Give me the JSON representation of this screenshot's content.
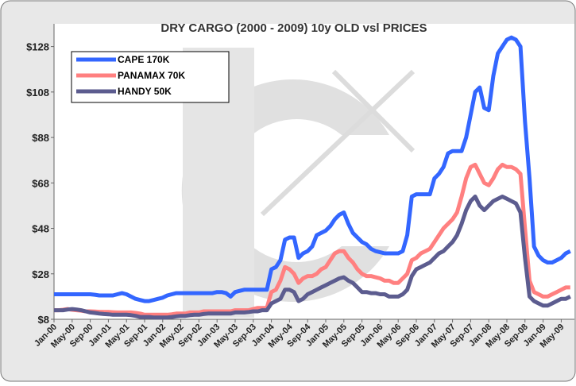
{
  "chart_data": {
    "type": "line",
    "title": "DRY CARGO (2000 - 2009) 10y OLD vsl PRICES",
    "categories": [
      "Jan-00",
      null,
      null,
      null,
      "May-00",
      null,
      null,
      null,
      "Sep-00",
      null,
      null,
      null,
      "Jan-01",
      null,
      null,
      null,
      "May-01",
      null,
      null,
      null,
      "Sep-01",
      null,
      null,
      null,
      "Jan-02",
      null,
      null,
      null,
      "May-02",
      null,
      null,
      null,
      "Sep-02",
      null,
      null,
      null,
      "Jan-03",
      null,
      null,
      null,
      "May-03",
      null,
      null,
      null,
      "Sep-03",
      null,
      null,
      null,
      "Jan-04",
      null,
      null,
      null,
      "May-04",
      null,
      null,
      null,
      "Sep-04",
      null,
      null,
      null,
      "Jan-05",
      null,
      null,
      null,
      "May-05",
      null,
      null,
      null,
      "Sep-05",
      null,
      null,
      null,
      "Jan-06",
      null,
      null,
      null,
      "May-06",
      null,
      null,
      null,
      "Sep-06",
      null,
      null,
      null,
      "Jan-07",
      null,
      null,
      null,
      "May-07",
      null,
      null,
      null,
      "Sep-07",
      null,
      null,
      null,
      "Jan-08",
      null,
      null,
      null,
      "May-08",
      null,
      null,
      null,
      "Sep-08",
      null,
      null,
      null,
      "Jan-09",
      null,
      null,
      null,
      "May-09",
      null,
      null
    ],
    "series": [
      {
        "name": "CAPE 170K",
        "color": "#3366ff",
        "values": [
          19,
          19,
          19,
          19,
          19,
          19,
          19,
          19,
          19,
          18.8,
          18.5,
          18.5,
          18.5,
          18.5,
          19,
          19.5,
          19,
          18,
          17,
          16.5,
          16,
          16,
          16.5,
          17,
          17.5,
          18.5,
          19,
          19.5,
          19.5,
          19.5,
          19.5,
          19.5,
          19.5,
          19.5,
          19.5,
          19.5,
          20,
          20,
          19.5,
          18,
          20,
          20.5,
          21,
          21,
          21,
          21,
          21,
          21,
          30,
          31,
          34,
          43,
          44,
          44,
          35,
          37,
          38,
          40,
          45,
          46,
          47,
          49,
          52,
          54,
          55,
          50,
          46,
          44,
          42,
          41,
          39,
          38,
          37.5,
          37,
          37,
          37,
          37,
          38,
          45,
          62,
          63,
          63,
          63,
          63,
          70,
          72,
          75,
          81,
          82,
          82,
          82,
          88,
          98,
          108,
          110,
          101,
          100,
          115,
          125,
          128,
          131,
          132,
          131,
          128,
          95,
          70,
          40,
          36,
          34,
          33,
          33,
          34,
          35,
          37,
          38
        ]
      },
      {
        "name": "PANAMAX 70K",
        "color": "#ff8080",
        "values": [
          12,
          12,
          12.2,
          12.5,
          12.2,
          12,
          11.8,
          11.5,
          11.5,
          11.4,
          11.3,
          11.2,
          11.2,
          11.1,
          11,
          11,
          11,
          11,
          10.8,
          10.5,
          10,
          10,
          10,
          10,
          10,
          10,
          10.2,
          10.5,
          10.5,
          10.5,
          11,
          11,
          11,
          11.5,
          11.5,
          11.5,
          11.5,
          11.5,
          11.5,
          11.5,
          12,
          12,
          12,
          12,
          12.5,
          13,
          13,
          13,
          20,
          21,
          25,
          31,
          30,
          28,
          24,
          26,
          27,
          27,
          28,
          30,
          31,
          34,
          37,
          38,
          38,
          35,
          33,
          30,
          28,
          27,
          27,
          26.5,
          26,
          25,
          25,
          24,
          24,
          26,
          28,
          34,
          35,
          37,
          38,
          39,
          42,
          45,
          48,
          50,
          52,
          55,
          62,
          70,
          75,
          76,
          72,
          68,
          67,
          70,
          74,
          76,
          75,
          75,
          74,
          72,
          48,
          25,
          20,
          19,
          18,
          18,
          19,
          20,
          21,
          22,
          22
        ]
      },
      {
        "name": "HANDY 50K",
        "color": "#5c5c8f",
        "values": [
          12,
          12,
          12,
          12.3,
          12.5,
          12.3,
          12,
          11.5,
          11,
          10.8,
          10.5,
          10.3,
          10.2,
          10,
          10,
          10,
          10,
          9.8,
          9.5,
          9,
          9,
          9,
          8.8,
          8.8,
          8.8,
          8.8,
          9,
          9.3,
          9.5,
          9.5,
          9.8,
          10,
          10,
          10.3,
          10.5,
          10.5,
          10.5,
          10.5,
          10.5,
          10.5,
          11,
          11,
          11,
          11.2,
          11.5,
          11.5,
          12,
          12,
          15,
          16,
          17,
          21,
          21,
          20,
          16,
          17,
          19,
          20,
          21,
          22,
          23,
          24,
          25,
          26,
          26.5,
          25,
          24,
          22,
          20,
          20,
          19.5,
          19.5,
          19,
          19,
          18,
          18,
          18,
          19,
          21,
          27,
          30,
          31,
          32,
          33,
          35,
          37,
          38,
          40,
          42,
          45,
          50,
          56,
          60,
          62,
          58,
          56,
          58,
          60,
          61,
          62,
          61,
          60,
          59,
          55,
          35,
          18,
          16,
          15,
          14,
          14,
          15,
          16,
          17,
          17,
          18
        ]
      }
    ],
    "ylim": [
      8,
      138
    ],
    "yticks": [
      {
        "value": 8,
        "label": "$8"
      },
      {
        "value": 28,
        "label": "$28"
      },
      {
        "value": 48,
        "label": "$48"
      },
      {
        "value": 68,
        "label": "$68"
      },
      {
        "value": 88,
        "label": "$88"
      },
      {
        "value": 108,
        "label": "$108"
      },
      {
        "value": 128,
        "label": "$128"
      }
    ],
    "grid": false,
    "legend": "top-left"
  }
}
